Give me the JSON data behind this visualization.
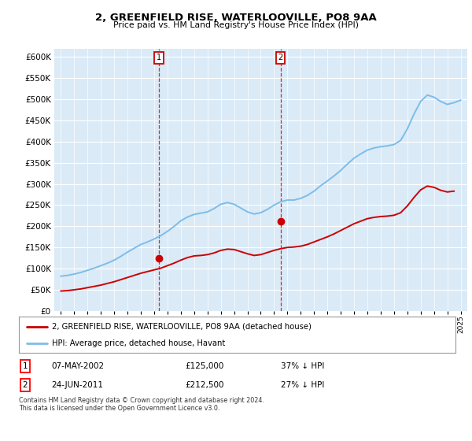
{
  "title": "2, GREENFIELD RISE, WATERLOOVILLE, PO8 9AA",
  "subtitle": "Price paid vs. HM Land Registry's House Price Index (HPI)",
  "hpi_label": "HPI: Average price, detached house, Havant",
  "property_label": "2, GREENFIELD RISE, WATERLOOVILLE, PO8 9AA (detached house)",
  "footer": "Contains HM Land Registry data © Crown copyright and database right 2024.\nThis data is licensed under the Open Government Licence v3.0.",
  "transaction1_date": "07-MAY-2002",
  "transaction1_price": "£125,000",
  "transaction1_hpi": "37% ↓ HPI",
  "transaction2_date": "24-JUN-2011",
  "transaction2_price": "£212,500",
  "transaction2_hpi": "27% ↓ HPI",
  "hpi_color": "#7dbde8",
  "property_color": "#cc0000",
  "background_color": "#daeaf7",
  "ylim": [
    0,
    620000
  ],
  "yticks": [
    0,
    50000,
    100000,
    150000,
    200000,
    250000,
    300000,
    350000,
    400000,
    450000,
    500000,
    550000,
    600000
  ],
  "hpi_x": [
    1995.0,
    1995.5,
    1996.0,
    1996.5,
    1997.0,
    1997.5,
    1998.0,
    1998.5,
    1999.0,
    1999.5,
    2000.0,
    2000.5,
    2001.0,
    2001.5,
    2002.0,
    2002.5,
    2003.0,
    2003.5,
    2004.0,
    2004.5,
    2005.0,
    2005.5,
    2006.0,
    2006.5,
    2007.0,
    2007.5,
    2008.0,
    2008.5,
    2009.0,
    2009.5,
    2010.0,
    2010.5,
    2011.0,
    2011.5,
    2012.0,
    2012.5,
    2013.0,
    2013.5,
    2014.0,
    2014.5,
    2015.0,
    2015.5,
    2016.0,
    2016.5,
    2017.0,
    2017.5,
    2018.0,
    2018.5,
    2019.0,
    2019.5,
    2020.0,
    2020.5,
    2021.0,
    2021.5,
    2022.0,
    2022.5,
    2023.0,
    2023.5,
    2024.0,
    2024.5,
    2025.0
  ],
  "hpi_y": [
    82000,
    84000,
    87000,
    91000,
    96000,
    101000,
    107000,
    113000,
    120000,
    129000,
    139000,
    148000,
    157000,
    163000,
    170000,
    178000,
    188000,
    200000,
    213000,
    222000,
    228000,
    231000,
    234000,
    242000,
    252000,
    256000,
    252000,
    243000,
    234000,
    229000,
    232000,
    240000,
    250000,
    258000,
    262000,
    262000,
    266000,
    273000,
    283000,
    296000,
    307000,
    319000,
    332000,
    347000,
    361000,
    371000,
    380000,
    385000,
    388000,
    390000,
    393000,
    403000,
    430000,
    465000,
    495000,
    510000,
    505000,
    495000,
    488000,
    492000,
    498000
  ],
  "prop_x": [
    1995.0,
    1995.5,
    1996.0,
    1996.5,
    1997.0,
    1997.5,
    1998.0,
    1998.5,
    1999.0,
    1999.5,
    2000.0,
    2000.5,
    2001.0,
    2001.5,
    2002.0,
    2002.5,
    2003.0,
    2003.5,
    2004.0,
    2004.5,
    2005.0,
    2005.5,
    2006.0,
    2006.5,
    2007.0,
    2007.5,
    2008.0,
    2008.5,
    2009.0,
    2009.5,
    2010.0,
    2010.5,
    2011.0,
    2011.5,
    2012.0,
    2012.5,
    2013.0,
    2013.5,
    2014.0,
    2014.5,
    2015.0,
    2015.5,
    2016.0,
    2016.5,
    2017.0,
    2017.5,
    2018.0,
    2018.5,
    2019.0,
    2019.5,
    2020.0,
    2020.5,
    2021.0,
    2021.5,
    2022.0,
    2022.5,
    2023.0,
    2023.5,
    2024.0,
    2024.5
  ],
  "prop_y": [
    47000,
    48000,
    50000,
    52000,
    55000,
    58000,
    61000,
    65000,
    69000,
    74000,
    79000,
    84000,
    89000,
    93000,
    97000,
    101000,
    107000,
    113000,
    120000,
    126000,
    130000,
    131000,
    133000,
    137000,
    143000,
    146000,
    145000,
    140000,
    135000,
    131000,
    133000,
    138000,
    143000,
    147000,
    150000,
    151000,
    153000,
    157000,
    163000,
    169000,
    175000,
    182000,
    190000,
    198000,
    206000,
    212000,
    218000,
    221000,
    223000,
    224000,
    226000,
    232000,
    248000,
    268000,
    286000,
    295000,
    292000,
    285000,
    281000,
    283000
  ],
  "transaction1_x": 2002.35,
  "transaction1_y": 125000,
  "transaction2_x": 2011.48,
  "transaction2_y": 212500,
  "xlim": [
    1994.5,
    2025.5
  ],
  "xticks": [
    1995,
    1996,
    1997,
    1998,
    1999,
    2000,
    2001,
    2002,
    2003,
    2004,
    2005,
    2006,
    2007,
    2008,
    2009,
    2010,
    2011,
    2012,
    2013,
    2014,
    2015,
    2016,
    2017,
    2018,
    2019,
    2020,
    2021,
    2022,
    2023,
    2024,
    2025
  ]
}
